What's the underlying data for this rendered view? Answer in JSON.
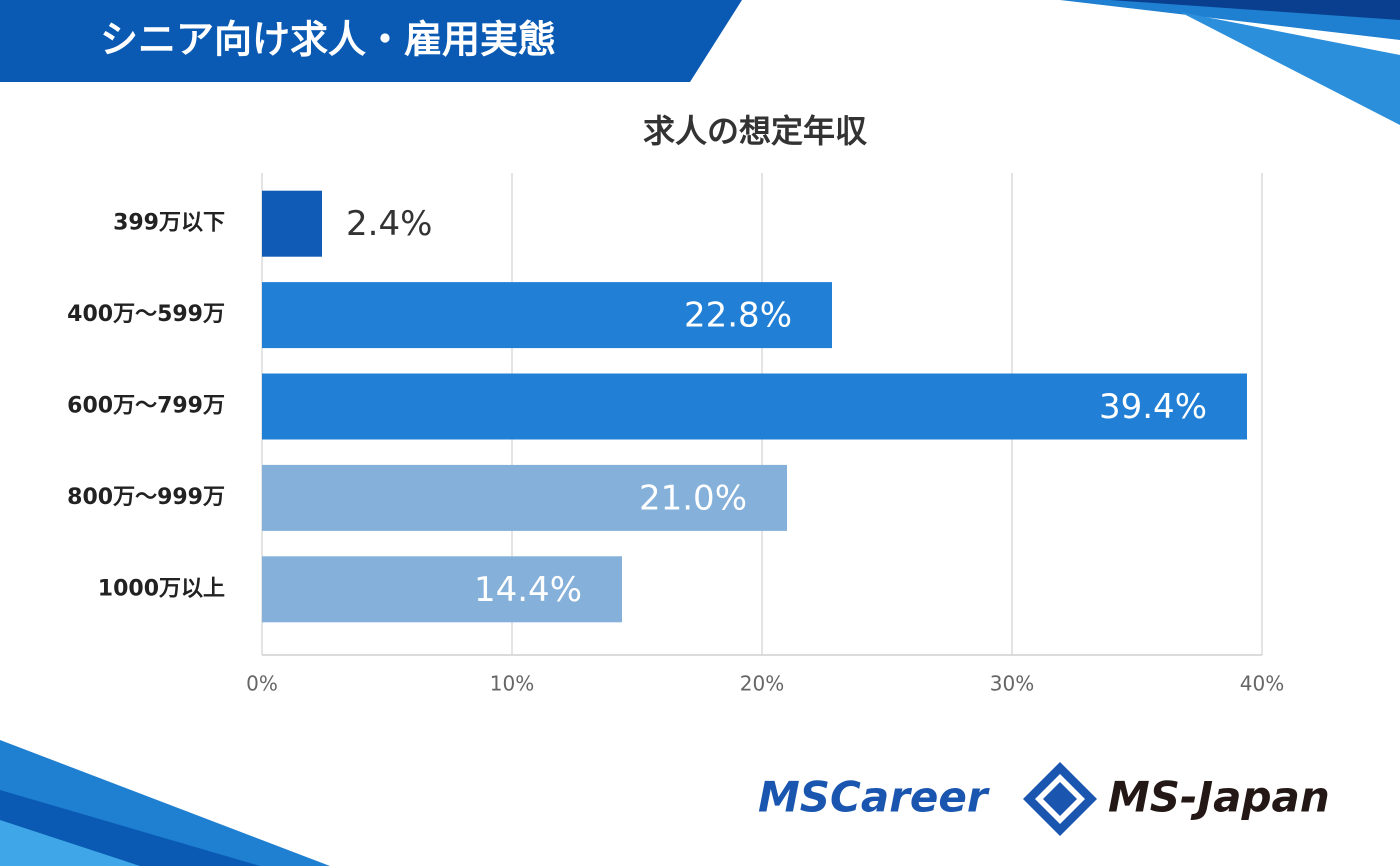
{
  "header": {
    "title": "シニア向け求人・雇用実態"
  },
  "chart_data": {
    "type": "bar",
    "orientation": "horizontal",
    "title": "求人の想定年収",
    "categories": [
      "399万以下",
      "400万～599万",
      "600万～799万",
      "800万～999万",
      "1000万以上"
    ],
    "values": [
      2.4,
      22.8,
      39.4,
      21.0,
      14.4
    ],
    "value_labels": [
      "2.4%",
      "22.8%",
      "39.4%",
      "21.0%",
      "14.4%"
    ],
    "colors": [
      "#0f5bb5",
      "#2180d6",
      "#2180d6",
      "#84b0da",
      "#84b0da"
    ],
    "xlim": [
      0,
      40
    ],
    "xticks": [
      {
        "value": 0,
        "label": "0%"
      },
      {
        "value": 10,
        "label": "10%"
      },
      {
        "value": 20,
        "label": "20%"
      },
      {
        "value": 30,
        "label": "30%"
      },
      {
        "value": 40,
        "label": "40%"
      }
    ],
    "grid": true
  },
  "footer": {
    "logos": [
      "MSCareer",
      "MS-Japan"
    ]
  }
}
